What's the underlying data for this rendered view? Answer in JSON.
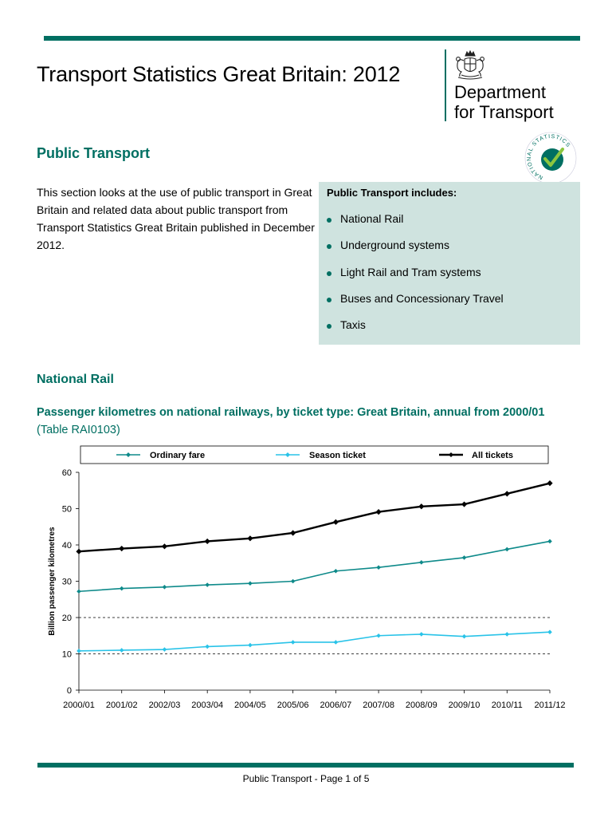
{
  "document": {
    "title": "Transport Statistics Great Britain: 2012",
    "logo_line1": "Department",
    "logo_line2": "for Transport",
    "badge_text": "NATIONAL STATISTICS"
  },
  "section": {
    "title": "Public Transport",
    "intro": "This section looks at the use of public transport in Great Britain and related data about public transport from Transport Statistics Great Britain published in December 2012."
  },
  "includes_box": {
    "title": "Public Transport includes:",
    "items": [
      "National Rail",
      "Underground systems",
      "Light Rail and Tram systems",
      "Buses and Concessionary Travel",
      "Taxis"
    ]
  },
  "subsection": {
    "title": "National Rail"
  },
  "chart_title": {
    "main": "Passenger kilometres on national railways, by ticket type: Great Britain, annual from 2000/01",
    "table_ref": "(Table RAI0103)"
  },
  "chart_data": {
    "type": "line",
    "categories": [
      "2000/01",
      "2001/02",
      "2002/03",
      "2003/04",
      "2004/05",
      "2005/06",
      "2006/07",
      "2007/08",
      "2008/09",
      "2009/10",
      "2010/11",
      "2011/12"
    ],
    "series": [
      {
        "name": "Ordinary fare",
        "color": "#0e8a8a",
        "values": [
          27.2,
          28.0,
          28.4,
          29.0,
          29.4,
          30.0,
          32.8,
          33.8,
          35.2,
          36.5,
          38.8,
          41.0
        ]
      },
      {
        "name": "Season ticket",
        "color": "#29c3e8",
        "values": [
          10.8,
          11.0,
          11.2,
          12.0,
          12.4,
          13.2,
          13.2,
          15.0,
          15.4,
          14.8,
          15.4,
          16.0
        ]
      },
      {
        "name": "All tickets",
        "color": "#000000",
        "values": [
          38.2,
          39.0,
          39.6,
          41.0,
          41.8,
          43.3,
          46.3,
          49.1,
          50.6,
          51.2,
          54.1,
          57.0
        ]
      }
    ],
    "ylabel": "Billion passenger kilometres",
    "xlabel": "",
    "ylim": [
      0,
      60
    ],
    "yticks": [
      0,
      10,
      20,
      30,
      40,
      50,
      60
    ],
    "grid": "dashed at 10 and 20",
    "legend": "top"
  },
  "footer": {
    "text": "Public Transport - Page 1 of 5"
  },
  "colors": {
    "accent": "#006f62",
    "box_background": "#cfe3df"
  }
}
